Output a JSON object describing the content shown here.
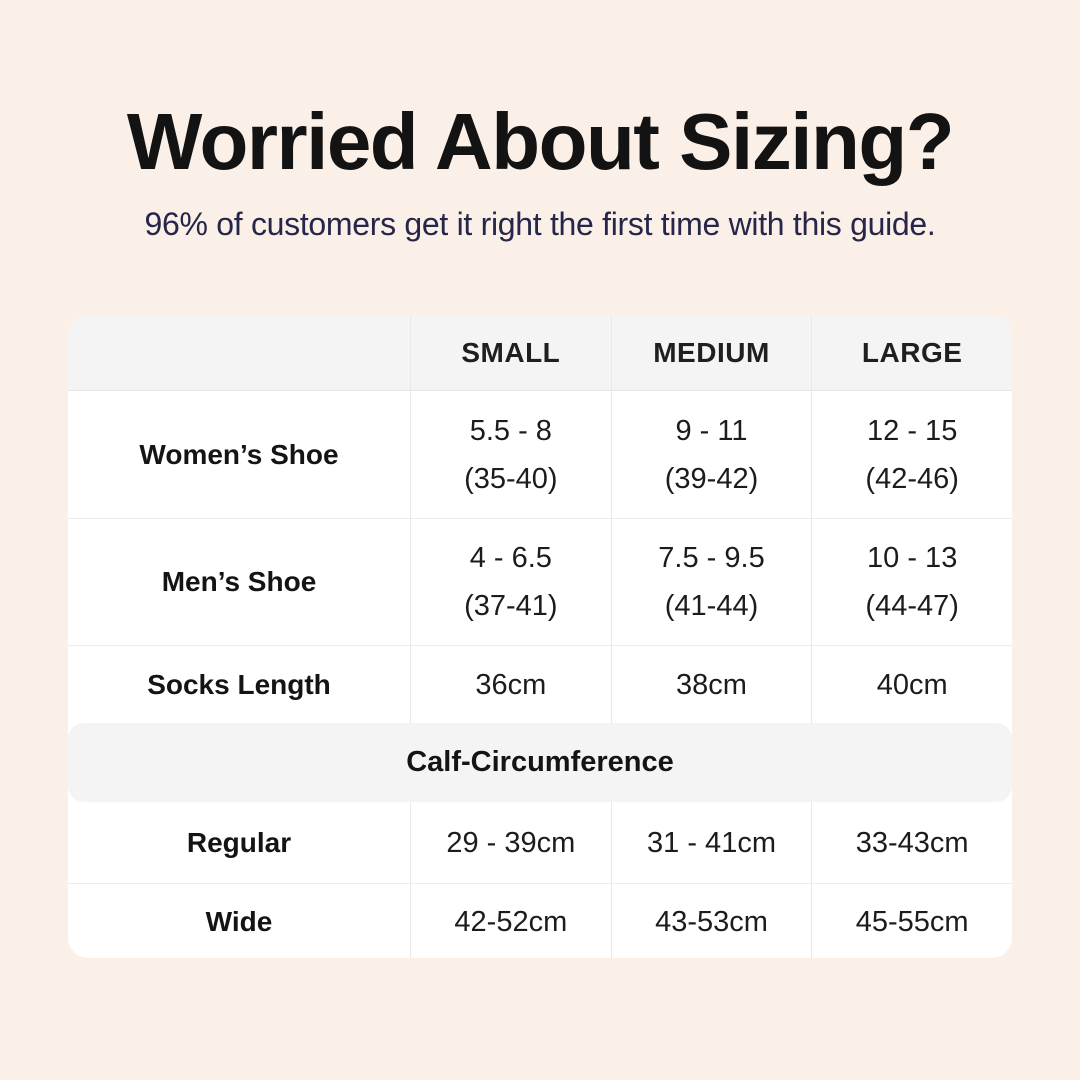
{
  "colors": {
    "bg": "#fbf0e8",
    "card": "#ffffff",
    "band": "#f4f4f4",
    "divider": "#e9e9e9",
    "title": "#131313",
    "subtitle": "#26264a",
    "text": "#1c1c1c"
  },
  "header": {
    "title": "Worried About Sizing?",
    "subtitle": "96% of customers get it right the first time with this guide."
  },
  "table": {
    "columns": [
      "SMALL",
      "MEDIUM",
      "LARGE"
    ],
    "rows": [
      {
        "label": "Women’s Shoe",
        "values": [
          [
            "5.5 - 8",
            "(35-40)"
          ],
          [
            "9 - 11",
            "(39-42)"
          ],
          [
            "12 - 15",
            "(42-46)"
          ]
        ]
      },
      {
        "label": "Men’s Shoe",
        "values": [
          [
            "4 - 6.5",
            "(37-41)"
          ],
          [
            "7.5 - 9.5",
            "(41-44)"
          ],
          [
            "10 - 13",
            "(44-47)"
          ]
        ]
      },
      {
        "label": "Socks Length",
        "values": [
          [
            "36cm"
          ],
          [
            "38cm"
          ],
          [
            "40cm"
          ]
        ]
      }
    ],
    "section_header": "Calf-Circumference",
    "section_rows": [
      {
        "label": "Regular",
        "values": [
          [
            "29 - 39cm"
          ],
          [
            "31 - 41cm"
          ],
          [
            "33-43cm"
          ]
        ]
      },
      {
        "label": "Wide",
        "values": [
          [
            "42-52cm"
          ],
          [
            "43-53cm"
          ],
          [
            "45-55cm"
          ]
        ]
      }
    ]
  },
  "chart_data": {
    "type": "table",
    "title": "Worried About Sizing?",
    "columns": [
      "",
      "SMALL",
      "MEDIUM",
      "LARGE"
    ],
    "rows": [
      [
        "Women’s Shoe",
        "5.5 - 8 (35-40)",
        "9 - 11 (39-42)",
        "12 - 15 (42-46)"
      ],
      [
        "Men’s Shoe",
        "4 - 6.5 (37-41)",
        "7.5 - 9.5 (41-44)",
        "10 - 13 (44-47)"
      ],
      [
        "Socks Length",
        "36cm",
        "38cm",
        "40cm"
      ],
      [
        "Calf-Circumference",
        "",
        "",
        ""
      ],
      [
        "Regular",
        "29 - 39cm",
        "31 - 41cm",
        "33-43cm"
      ],
      [
        "Wide",
        "42-52cm",
        "43-53cm",
        "45-55cm"
      ]
    ]
  }
}
